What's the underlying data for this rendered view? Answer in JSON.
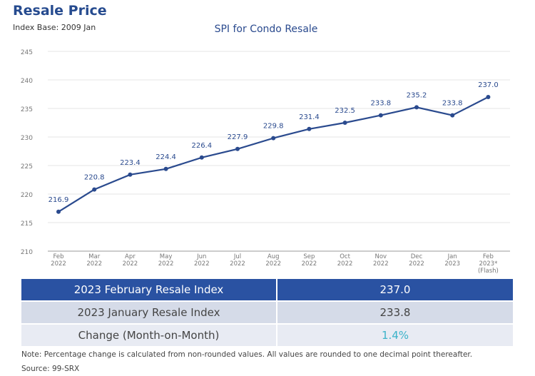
{
  "header": {
    "title": "Resale Price",
    "subtitle": "Index Base: 2009 Jan"
  },
  "chart_data": {
    "type": "line",
    "title": "SPI for Condo Resale",
    "categories": [
      [
        "Feb",
        "2022"
      ],
      [
        "Mar",
        "2022"
      ],
      [
        "Apr",
        "2022"
      ],
      [
        "May",
        "2022"
      ],
      [
        "Jun",
        "2022"
      ],
      [
        "Jul",
        "2022"
      ],
      [
        "Aug",
        "2022"
      ],
      [
        "Sep",
        "2022"
      ],
      [
        "Oct",
        "2022"
      ],
      [
        "Nov",
        "2022"
      ],
      [
        "Dec",
        "2022"
      ],
      [
        "Jan",
        "2023"
      ],
      [
        "Feb",
        "2023*",
        "(Flash)"
      ]
    ],
    "values": [
      216.9,
      220.8,
      223.4,
      224.4,
      226.4,
      227.9,
      229.8,
      231.4,
      232.5,
      233.8,
      235.2,
      233.8,
      237.0
    ],
    "data_labels": [
      "216.9",
      "220.8",
      "223.4",
      "224.4",
      "226.4",
      "227.9",
      "229.8",
      "231.4",
      "232.5",
      "233.8",
      "235.2",
      "233.8",
      "237.0"
    ],
    "ylim": [
      210,
      245
    ],
    "yticks": [
      210,
      215,
      220,
      225,
      230,
      235,
      240,
      245
    ],
    "grid": true,
    "color": "#2a4a8e"
  },
  "table": {
    "rows": [
      {
        "label": "2023 February Resale Index",
        "value": "237.0"
      },
      {
        "label": "2023 January Resale Index",
        "value": "233.8"
      },
      {
        "label": "Change (Month-on-Month)",
        "value": "1.4%"
      }
    ],
    "change_color": "#3bb3c9"
  },
  "footer": {
    "note": "Note: Percentage change is calculated from non-rounded values.  All values are rounded to one decimal point thereafter.",
    "source": "Source: 99-SRX"
  }
}
